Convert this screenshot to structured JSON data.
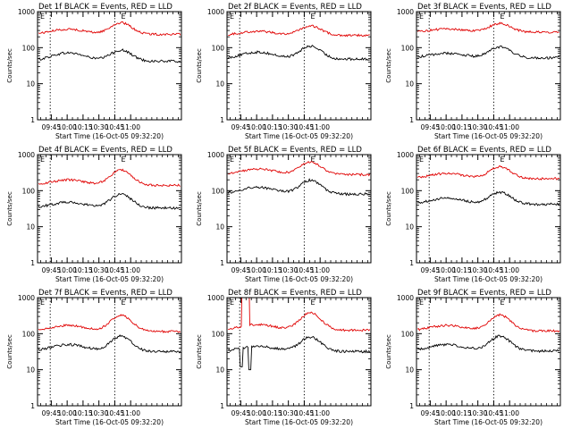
{
  "colors": {
    "events": "#000000",
    "lld": "#e00000",
    "background": "#ffffff",
    "axis": "#000000"
  },
  "common": {
    "ylabel": "Counts/sec",
    "xlabel": "Start Time (16-Oct-05 09:32:20)",
    "marker": "E",
    "x_ticks": [
      "09:45",
      "10:00",
      "10:15",
      "10:30",
      "10:45",
      "11:00"
    ],
    "y_ticks": [
      "1",
      "10",
      "100",
      "1000"
    ]
  },
  "chart_data": [
    {
      "type": "line",
      "title": "Det 1f BLACK = Events, RED = LLD",
      "y_scale": "log",
      "ylim": [
        1,
        1000
      ],
      "series": [
        {
          "name": "Events",
          "color": "#000000",
          "base": 42,
          "peak1": 72,
          "peak2": 85
        },
        {
          "name": "LLD",
          "color": "#e00000",
          "base": 235,
          "peak1": 325,
          "peak2": 490
        }
      ]
    },
    {
      "type": "line",
      "title": "Det 2f BLACK = Events, RED = LLD",
      "y_scale": "log",
      "ylim": [
        1,
        1000
      ],
      "series": [
        {
          "name": "Events",
          "color": "#000000",
          "base": 48,
          "peak1": 75,
          "peak2": 110
        },
        {
          "name": "LLD",
          "color": "#e00000",
          "base": 220,
          "peak1": 285,
          "peak2": 400
        }
      ]
    },
    {
      "type": "line",
      "title": "Det 3f BLACK = Events, RED = LLD",
      "y_scale": "log",
      "ylim": [
        1,
        1000
      ],
      "series": [
        {
          "name": "Events",
          "color": "#000000",
          "base": 52,
          "peak1": 70,
          "peak2": 105
        },
        {
          "name": "LLD",
          "color": "#e00000",
          "base": 270,
          "peak1": 330,
          "peak2": 470
        }
      ]
    },
    {
      "type": "line",
      "title": "Det 4f BLACK = Events, RED = LLD",
      "y_scale": "log",
      "ylim": [
        1,
        1000
      ],
      "series": [
        {
          "name": "Events",
          "color": "#000000",
          "base": 33,
          "peak1": 48,
          "peak2": 80
        },
        {
          "name": "LLD",
          "color": "#e00000",
          "base": 140,
          "peak1": 200,
          "peak2": 380
        }
      ]
    },
    {
      "type": "line",
      "title": "Det 5f BLACK = Events, RED = LLD",
      "y_scale": "log",
      "ylim": [
        1,
        1000
      ],
      "series": [
        {
          "name": "Events",
          "color": "#000000",
          "base": 80,
          "peak1": 125,
          "peak2": 195
        },
        {
          "name": "LLD",
          "color": "#e00000",
          "base": 280,
          "peak1": 400,
          "peak2": 620
        }
      ]
    },
    {
      "type": "line",
      "title": "Det 6f BLACK = Events, RED = LLD",
      "y_scale": "log",
      "ylim": [
        1,
        1000
      ],
      "series": [
        {
          "name": "Events",
          "color": "#000000",
          "base": 42,
          "peak1": 62,
          "peak2": 90
        },
        {
          "name": "LLD",
          "color": "#e00000",
          "base": 215,
          "peak1": 300,
          "peak2": 460
        }
      ]
    },
    {
      "type": "line",
      "title": "Det 7f BLACK = Events, RED = LLD",
      "y_scale": "log",
      "ylim": [
        1,
        1000
      ],
      "series": [
        {
          "name": "Events",
          "color": "#000000",
          "base": 32,
          "peak1": 50,
          "peak2": 85
        },
        {
          "name": "LLD",
          "color": "#e00000",
          "base": 115,
          "peak1": 170,
          "peak2": 330
        }
      ]
    },
    {
      "type": "line",
      "title": "Det 8f BLACK = Events, RED = LLD",
      "y_scale": "log",
      "ylim": [
        1,
        1000
      ],
      "series": [
        {
          "name": "Events",
          "color": "#000000",
          "base": 32,
          "peak1": 45,
          "peak2": 80
        },
        {
          "name": "LLD",
          "color": "#e00000",
          "base": 125,
          "peak1": 180,
          "peak2": 380
        }
      ],
      "annotations": [
        "Events drop to about 12 counts/sec and LLD spikes off-scale near 09:50-09:55"
      ]
    },
    {
      "type": "line",
      "title": "Det 9f BLACK = Events, RED = LLD",
      "y_scale": "log",
      "ylim": [
        1,
        1000
      ],
      "series": [
        {
          "name": "Events",
          "color": "#000000",
          "base": 33,
          "peak1": 50,
          "peak2": 85
        },
        {
          "name": "LLD",
          "color": "#e00000",
          "base": 120,
          "peak1": 170,
          "peak2": 330
        }
      ]
    }
  ]
}
